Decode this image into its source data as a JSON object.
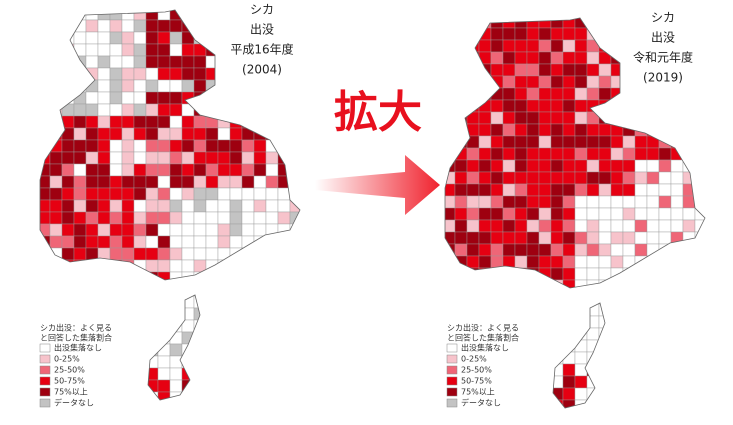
{
  "left_map": {
    "label": [
      "シカ",
      "出没",
      "平成16年度",
      "(2004)"
    ]
  },
  "right_map": {
    "label": [
      "シカ",
      "出没",
      "令和元年度",
      "(2019)"
    ]
  },
  "arrow_label": "拡大",
  "legend": {
    "title": [
      "シカ出没：よく見る",
      "と回答した集落割合"
    ],
    "items": [
      {
        "label": "出没集落なし",
        "color": "#ffffff"
      },
      {
        "label": "0-25%",
        "color": "#f7c3cb"
      },
      {
        "label": "25-50%",
        "color": "#ef6677"
      },
      {
        "label": "50-75%",
        "color": "#e60012"
      },
      {
        "label": "75%以上",
        "color": "#9e0010"
      },
      {
        "label": "データなし",
        "color": "#c3c3c3"
      }
    ]
  }
}
